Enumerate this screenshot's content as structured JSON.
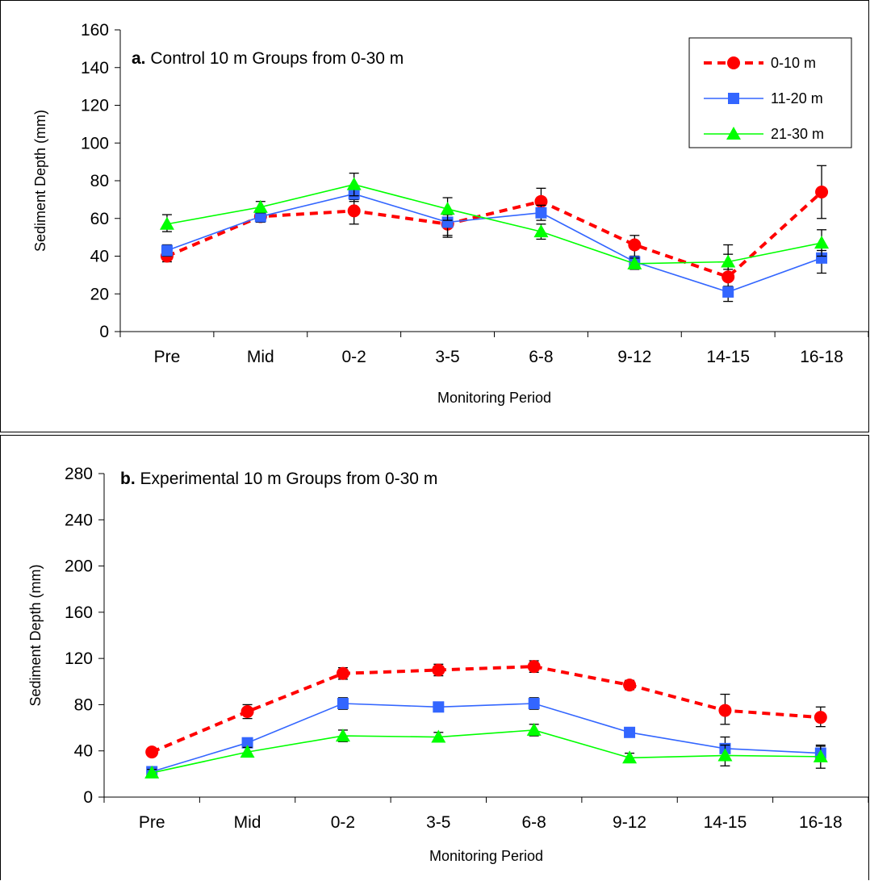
{
  "chart_data": [
    {
      "type": "line",
      "title_prefix": "a.",
      "title": "Control 10 m Groups from 0-30 m",
      "xlabel": "Monitoring Period",
      "ylabel": "Sediment Depth (mm)",
      "categories": [
        "Pre",
        "Mid",
        "0-2",
        "3-5",
        "6-8",
        "9-12",
        "14-15",
        "16-18"
      ],
      "ylim": [
        0,
        160
      ],
      "yticks": [
        0,
        20,
        40,
        60,
        80,
        100,
        120,
        140,
        160
      ],
      "legend": "top-right",
      "series": [
        {
          "name": "0-10 m",
          "color": "#ff0000",
          "marker": "circle",
          "line": "dashed",
          "values": [
            40,
            61,
            64,
            57,
            69,
            46,
            29,
            74
          ],
          "err_hi": [
            44,
            63,
            70,
            60,
            76,
            51,
            46,
            88
          ],
          "err_lo": [
            37,
            59,
            57,
            51,
            62,
            38,
            21,
            60
          ]
        },
        {
          "name": "11-20 m",
          "color": "#3366ff",
          "marker": "square",
          "line": "solid",
          "values": [
            43,
            61,
            73,
            58,
            63,
            37,
            21,
            39
          ],
          "err_hi": [
            46,
            64,
            77,
            62,
            67,
            40,
            24,
            43
          ],
          "err_lo": [
            40,
            58,
            69,
            50,
            59,
            34,
            16,
            31
          ]
        },
        {
          "name": "21-30 m",
          "color": "#00ff00",
          "marker": "triangle",
          "line": "solid",
          "values": [
            57,
            66,
            78,
            65,
            53,
            36,
            37,
            47
          ],
          "err_hi": [
            62,
            69,
            84,
            71,
            57,
            39,
            41,
            54
          ],
          "err_lo": [
            53,
            63,
            72,
            59,
            49,
            33,
            33,
            40
          ]
        }
      ]
    },
    {
      "type": "line",
      "title_prefix": "b.",
      "title": "Experimental 10 m Groups from 0-30 m",
      "xlabel": "Monitoring Period",
      "ylabel": "Sediment Depth (mm)",
      "categories": [
        "Pre",
        "Mid",
        "0-2",
        "3-5",
        "6-8",
        "9-12",
        "14-15",
        "16-18"
      ],
      "ylim": [
        0,
        280
      ],
      "yticks": [
        0,
        40,
        80,
        120,
        160,
        200,
        240,
        280
      ],
      "series": [
        {
          "name": "0-10 m",
          "color": "#ff0000",
          "marker": "circle",
          "line": "dashed",
          "values": [
            39,
            74,
            107,
            110,
            113,
            97,
            75,
            69
          ],
          "err_hi": [
            42,
            80,
            112,
            115,
            118,
            101,
            89,
            78
          ],
          "err_lo": [
            36,
            68,
            102,
            105,
            108,
            93,
            63,
            61
          ]
        },
        {
          "name": "11-20 m",
          "color": "#3366ff",
          "marker": "square",
          "line": "solid",
          "values": [
            22,
            47,
            81,
            78,
            81,
            56,
            42,
            38
          ],
          "err_hi": [
            25,
            51,
            86,
            82,
            86,
            60,
            52,
            44
          ],
          "err_lo": [
            19,
            43,
            76,
            74,
            76,
            52,
            32,
            32
          ]
        },
        {
          "name": "21-30 m",
          "color": "#00ff00",
          "marker": "triangle",
          "line": "solid",
          "values": [
            21,
            39,
            53,
            52,
            58,
            34,
            36,
            35
          ],
          "err_hi": [
            24,
            43,
            58,
            56,
            63,
            38,
            45,
            45
          ],
          "err_lo": [
            18,
            35,
            48,
            48,
            53,
            30,
            27,
            25
          ]
        }
      ]
    }
  ]
}
